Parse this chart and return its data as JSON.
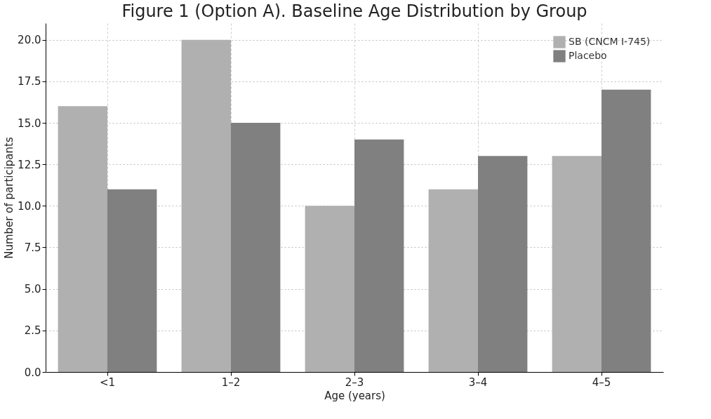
{
  "chart_data": {
    "type": "bar",
    "title": "Figure 1 (Option A). Baseline Age Distribution by Group",
    "xlabel": "Age (years)",
    "ylabel": "Number of participants",
    "categories": [
      "<1",
      "1–2",
      "2–3",
      "3–4",
      "4–5"
    ],
    "series": [
      {
        "name": "SB (CNCM I-745)",
        "color": "#b0b0b0",
        "values": [
          16,
          20,
          10,
          11,
          13
        ]
      },
      {
        "name": "Placebo",
        "color": "#808080",
        "values": [
          11,
          15,
          14,
          13,
          17
        ]
      }
    ],
    "ylim": [
      0,
      21
    ],
    "yticks": [
      {
        "value": 0,
        "label": "0.0"
      },
      {
        "value": 2.5,
        "label": "2.5"
      },
      {
        "value": 5,
        "label": "5.0"
      },
      {
        "value": 7.5,
        "label": "7.5"
      },
      {
        "value": 10,
        "label": "10.0"
      },
      {
        "value": 12.5,
        "label": "12.5"
      },
      {
        "value": 15,
        "label": "15.0"
      },
      {
        "value": 17.5,
        "label": "17.5"
      },
      {
        "value": 20,
        "label": "20.0"
      }
    ],
    "grid": true,
    "legend": "top right"
  }
}
